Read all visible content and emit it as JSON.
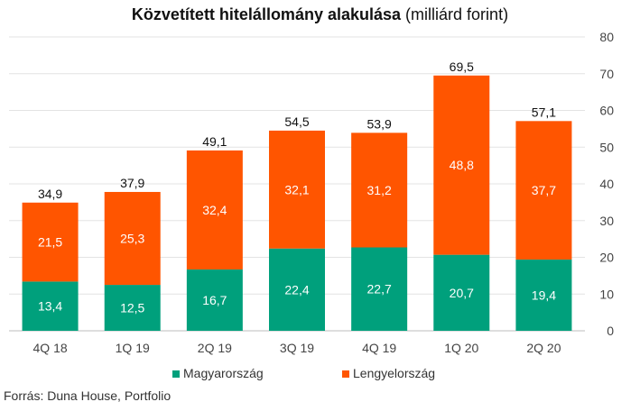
{
  "chart_data": {
    "type": "bar",
    "stacked": true,
    "title_bold": "Közvetített hitelállomány alakulása",
    "title_rest": "(milliárd forint)",
    "categories": [
      "4Q 18",
      "1Q 19",
      "2Q 19",
      "3Q 19",
      "4Q 19",
      "1Q 20",
      "2Q 20"
    ],
    "series": [
      {
        "name": "Magyarország",
        "color": "#00a07c",
        "values": [
          13.4,
          12.5,
          16.7,
          22.4,
          22.7,
          20.7,
          19.4
        ],
        "labels": [
          "13,4",
          "12,5",
          "16,7",
          "22,4",
          "22,7",
          "20,7",
          "19,4"
        ]
      },
      {
        "name": "Lengyelország",
        "color": "#ff5500",
        "values": [
          21.5,
          25.3,
          32.4,
          32.1,
          31.2,
          48.8,
          37.7
        ],
        "labels": [
          "21,5",
          "25,3",
          "32,4",
          "32,1",
          "31,2",
          "48,8",
          "37,7"
        ]
      }
    ],
    "totals": [
      "34,9",
      "37,9",
      "49,1",
      "54,5",
      "53,9",
      "69,5",
      "57,1"
    ],
    "ylim": [
      0,
      80
    ],
    "yticks": [
      "0",
      "10",
      "20",
      "30",
      "40",
      "50",
      "60",
      "70",
      "80"
    ],
    "y_axis_position": "right",
    "grid": true,
    "legend_position": "bottom"
  },
  "source": "Forrás: Duna House, Portfolio"
}
